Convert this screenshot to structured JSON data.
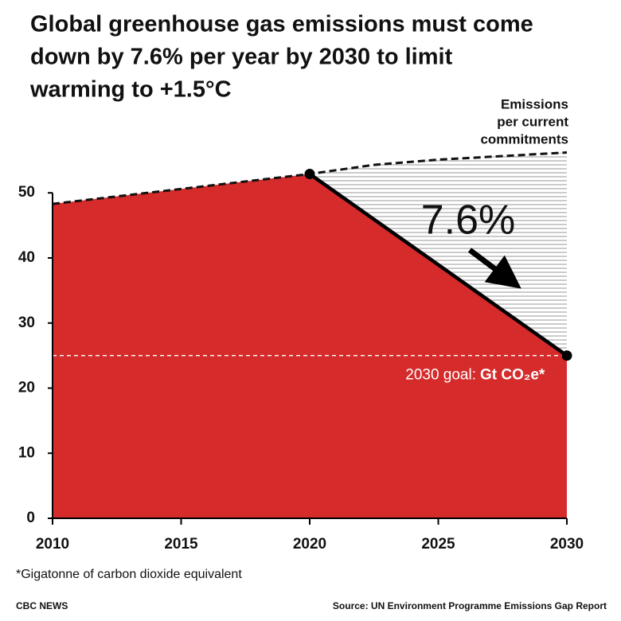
{
  "chart_data": {
    "type": "area",
    "title_lines": [
      "Global greenhouse gas emissions must come",
      "down by 7.6% per year by 2030 to limit",
      "warming to +1.5°C"
    ],
    "series": [
      {
        "x": [
          2010,
          2020,
          2030
        ],
        "values": [
          48.3,
          52.9,
          25
        ],
        "color": "#d52b2b"
      },
      {
        "x": [
          2010,
          2020,
          2022.5,
          2025,
          2030
        ],
        "values": [
          48.3,
          52.9,
          54.3,
          55.1,
          56.2
        ],
        "color": "#111111",
        "style": "dashed"
      }
    ],
    "commitments_label": [
      "Emissions",
      "per current",
      "commitments"
    ],
    "rate_label": "7.6%",
    "goal": 25,
    "goal_label": "2030 goal:",
    "goal_unit": "Gt CO₂e*",
    "xlim": [
      2010,
      2030
    ],
    "xticks": [
      2010,
      2015,
      2020,
      2025,
      2030
    ],
    "ylim": [
      0,
      57
    ],
    "yticks": [
      0,
      10,
      20,
      30,
      40,
      50
    ],
    "footnote": "*Gigatonne of carbon dioxide equivalent",
    "brand": "CBC NEWS",
    "source": "Source: UN Environment Programme Emissions Gap Report"
  }
}
